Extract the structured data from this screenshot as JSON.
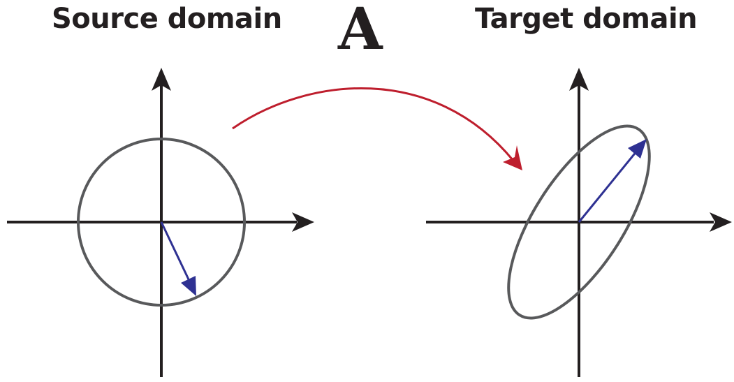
{
  "source": {
    "title": "Source domain"
  },
  "target": {
    "title": "Target domain"
  },
  "transform": {
    "label": "A"
  },
  "colors": {
    "axis": "#231f20",
    "shape": "#58595b",
    "vector": "#2e3192",
    "mapping_arrow": "#be1e2d",
    "text": "#231f20"
  }
}
